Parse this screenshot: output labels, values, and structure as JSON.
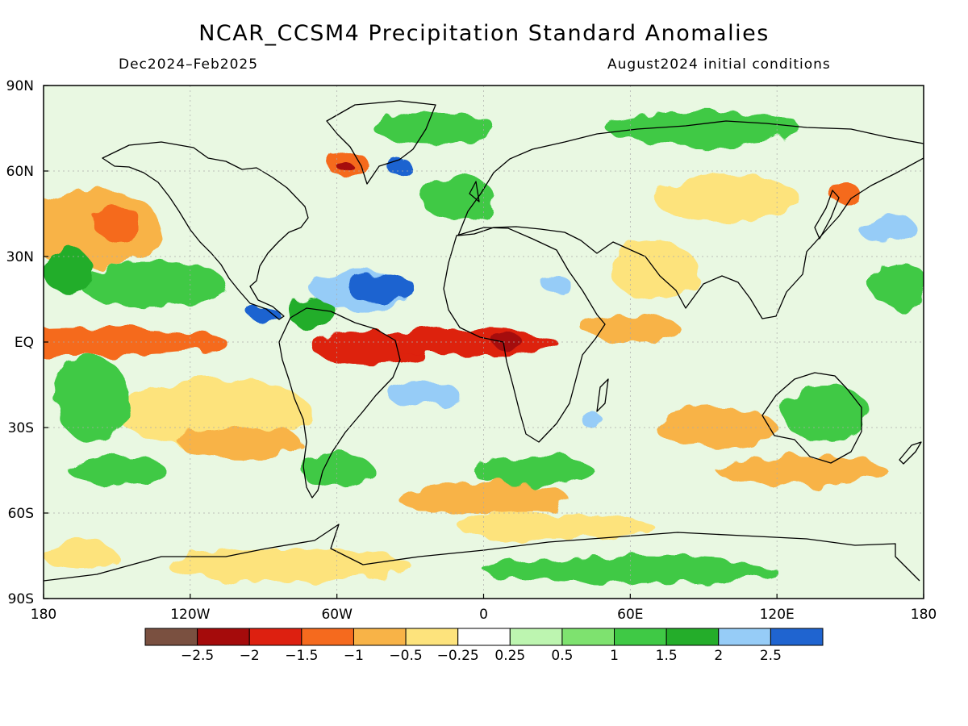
{
  "header": {
    "title": "NCAR_CCSM4 Precipitation Standard Anomalies",
    "period": "Dec2024–Feb2025",
    "init": "August2024 initial conditions"
  },
  "axes": {
    "lat_labels": [
      {
        "lat": 90,
        "text": "90N"
      },
      {
        "lat": 60,
        "text": "60N"
      },
      {
        "lat": 30,
        "text": "30N"
      },
      {
        "lat": 0,
        "text": "EQ"
      },
      {
        "lat": -30,
        "text": "30S"
      },
      {
        "lat": -60,
        "text": "60S"
      },
      {
        "lat": -90,
        "text": "90S"
      }
    ],
    "lon_labels": [
      {
        "lon": -180,
        "text": "180"
      },
      {
        "lon": -120,
        "text": "120W"
      },
      {
        "lon": -60,
        "text": "60W"
      },
      {
        "lon": 0,
        "text": "0"
      },
      {
        "lon": 60,
        "text": "60E"
      },
      {
        "lon": 120,
        "text": "120E"
      },
      {
        "lon": 180,
        "text": "180"
      }
    ]
  },
  "colorbar": {
    "colors": [
      "#7a5040",
      "#a50b0b",
      "#dd2010",
      "#f56a1e",
      "#f8b347",
      "#fde37c",
      "#ffffff",
      "#bdf5b0",
      "#7ee26f",
      "#3fc945",
      "#24ad2a",
      "#96ccf7",
      "#1f64d0"
    ],
    "labels": [
      "−2.5",
      "−2",
      "−1.5",
      "−1",
      "−0.5",
      "−0.25",
      "0.25",
      "0.5",
      "1",
      "1.5",
      "2",
      "2.5"
    ]
  },
  "anomaly_regions": [
    {
      "lon": -160,
      "lat": 40,
      "rx": 28,
      "ry": 14,
      "level": -1
    },
    {
      "lon": -150,
      "lat": 42,
      "rx": 10,
      "ry": 6,
      "level": -1.5
    },
    {
      "lon": -160,
      "lat": 0,
      "rx": 55,
      "ry": 5,
      "level": -1.5
    },
    {
      "lon": -45,
      "lat": -2,
      "rx": 25,
      "ry": 6,
      "level": -2
    },
    {
      "lon": -5,
      "lat": 0,
      "rx": 35,
      "ry": 5,
      "level": -2
    },
    {
      "lon": 10,
      "lat": 0,
      "rx": 6,
      "ry": 3,
      "level": -2.5
    },
    {
      "lon": -50,
      "lat": 18,
      "rx": 20,
      "ry": 7,
      "level": 2
    },
    {
      "lon": -42,
      "lat": 19,
      "rx": 14,
      "ry": 5,
      "level": 2.5
    },
    {
      "lon": -25,
      "lat": -18,
      "rx": 15,
      "ry": 4,
      "level": 2
    },
    {
      "lon": -55,
      "lat": 62,
      "rx": 8,
      "ry": 5,
      "level": -1.5
    },
    {
      "lon": -56,
      "lat": 61,
      "rx": 3,
      "ry": 2,
      "level": -2.5
    },
    {
      "lon": -35,
      "lat": 62,
      "rx": 5,
      "ry": 3,
      "level": 2.5
    },
    {
      "lon": 30,
      "lat": 20,
      "rx": 6,
      "ry": 3,
      "level": 2
    },
    {
      "lon": 45,
      "lat": -28,
      "rx": 4,
      "ry": 3,
      "level": 2
    },
    {
      "lon": 148,
      "lat": 52,
      "rx": 6,
      "ry": 4,
      "level": -1.5
    },
    {
      "lon": 165,
      "lat": 40,
      "rx": 12,
      "ry": 5,
      "level": 2
    },
    {
      "lon": 60,
      "lat": 5,
      "rx": 20,
      "ry": 5,
      "level": -1
    },
    {
      "lon": 95,
      "lat": -30,
      "rx": 25,
      "ry": 7,
      "level": -1
    },
    {
      "lon": -110,
      "lat": -25,
      "rx": 40,
      "ry": 12,
      "level": -0.5
    },
    {
      "lon": -100,
      "lat": -35,
      "rx": 25,
      "ry": 6,
      "level": -1
    },
    {
      "lon": 0,
      "lat": -55,
      "rx": 35,
      "ry": 6,
      "level": -1
    },
    {
      "lon": 30,
      "lat": -65,
      "rx": 40,
      "ry": 5,
      "level": -0.5
    },
    {
      "lon": -80,
      "lat": -78,
      "rx": 50,
      "ry": 6,
      "level": -0.5
    },
    {
      "lon": 130,
      "lat": -45,
      "rx": 35,
      "ry": 5,
      "level": -1
    },
    {
      "lon": 140,
      "lat": -25,
      "rx": 18,
      "ry": 10,
      "level": 1
    },
    {
      "lon": -135,
      "lat": 20,
      "rx": 30,
      "ry": 8,
      "level": 1
    },
    {
      "lon": -170,
      "lat": 25,
      "rx": 10,
      "ry": 8,
      "level": 1.5
    },
    {
      "lon": -160,
      "lat": -20,
      "rx": 15,
      "ry": 15,
      "level": 1
    },
    {
      "lon": -20,
      "lat": 75,
      "rx": 25,
      "ry": 6,
      "level": 1
    },
    {
      "lon": 90,
      "lat": 75,
      "rx": 40,
      "ry": 6,
      "level": 1
    },
    {
      "lon": -10,
      "lat": 50,
      "rx": 15,
      "ry": 8,
      "level": 1
    },
    {
      "lon": 170,
      "lat": 20,
      "rx": 12,
      "ry": 8,
      "level": 1
    },
    {
      "lon": -70,
      "lat": 10,
      "rx": 10,
      "ry": 5,
      "level": 1.5
    },
    {
      "lon": -90,
      "lat": 10,
      "rx": 6,
      "ry": 3,
      "level": 2.5
    },
    {
      "lon": 20,
      "lat": -45,
      "rx": 25,
      "ry": 5,
      "level": 1
    },
    {
      "lon": -60,
      "lat": -45,
      "rx": 15,
      "ry": 6,
      "level": 1
    },
    {
      "lon": 70,
      "lat": 25,
      "rx": 18,
      "ry": 10,
      "level": -0.5
    },
    {
      "lon": 100,
      "lat": 50,
      "rx": 30,
      "ry": 8,
      "level": -0.5
    },
    {
      "lon": 60,
      "lat": -80,
      "rx": 60,
      "ry": 5,
      "level": 1
    },
    {
      "lon": -165,
      "lat": -75,
      "rx": 15,
      "ry": 5,
      "level": -0.5
    },
    {
      "lon": -150,
      "lat": -45,
      "rx": 20,
      "ry": 5,
      "level": 1
    }
  ]
}
